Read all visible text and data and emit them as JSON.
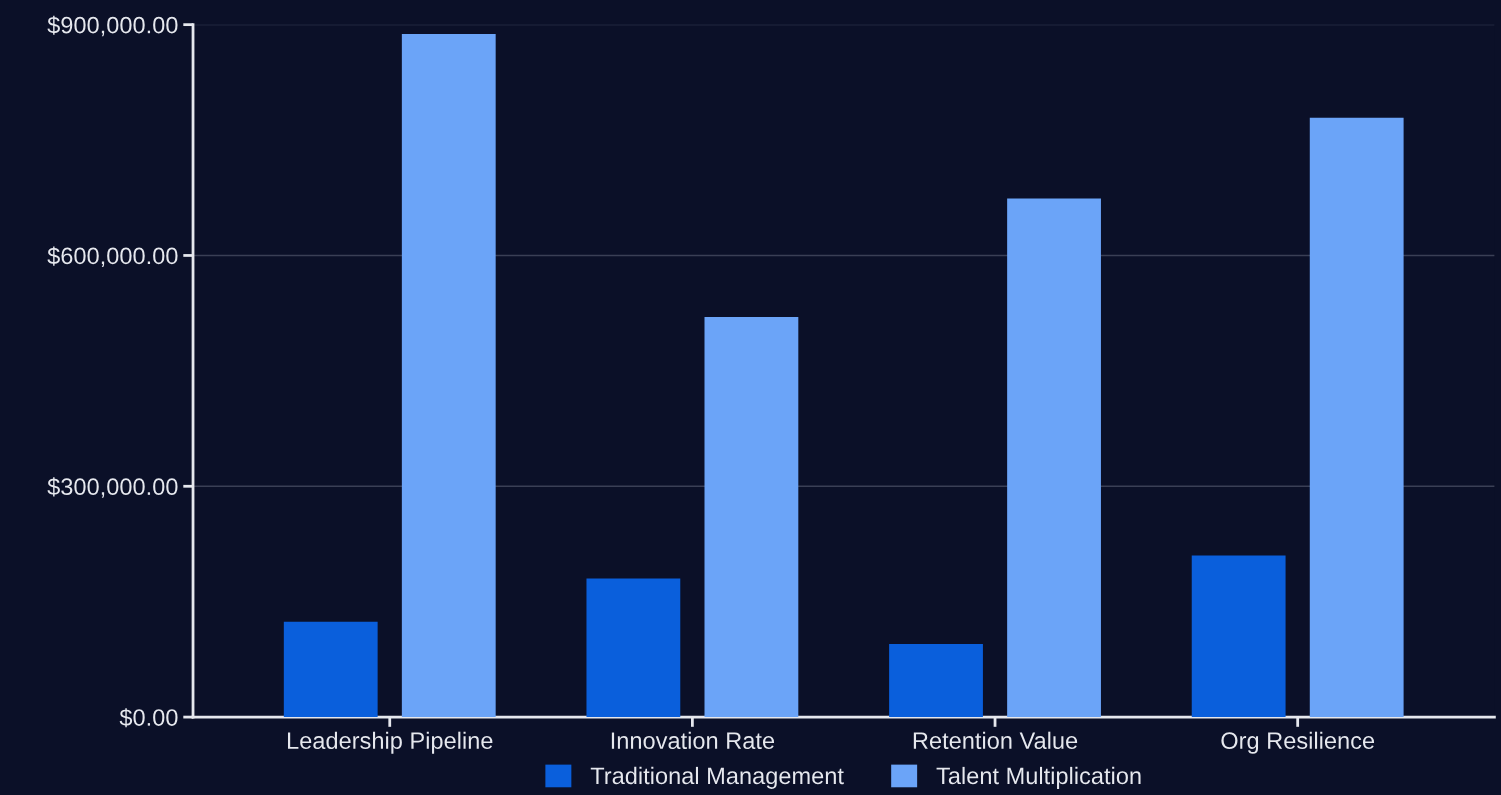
{
  "chart_data": {
    "type": "bar",
    "categories": [
      "Leadership Pipeline",
      "Innovation Rate",
      "Retention Value",
      "Org Resilience"
    ],
    "series": [
      {
        "name": "Traditional Management",
        "color": "#0a5fdc",
        "values": [
          124000,
          180000,
          95000,
          210000
        ]
      },
      {
        "name": "Talent Multiplication",
        "color": "#6ba4f8",
        "values": [
          888000,
          520000,
          674000,
          779000
        ]
      }
    ],
    "ylim": [
      0,
      900000
    ],
    "yticks": [
      {
        "value": 0,
        "label": "$0.00"
      },
      {
        "value": 300000,
        "label": "$300,000.00"
      },
      {
        "value": 600000,
        "label": "$600,000.00"
      },
      {
        "value": 900000,
        "label": "$900,000.00"
      }
    ],
    "grid": "y",
    "legend": "bottom"
  }
}
